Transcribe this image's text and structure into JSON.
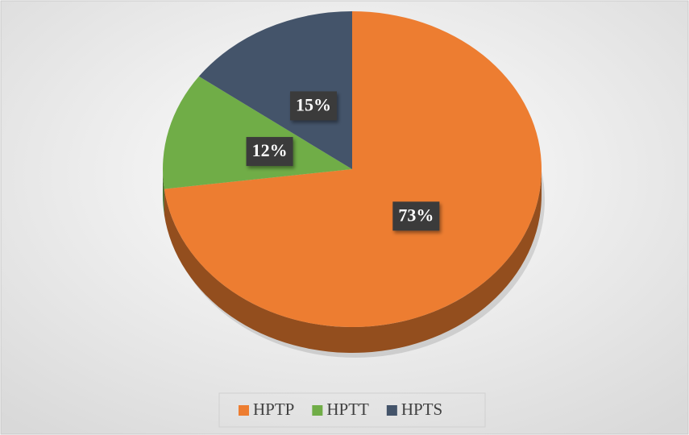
{
  "chart_data": {
    "type": "pie",
    "categories": [
      "HPTP",
      "HPTT",
      "HPTS"
    ],
    "values": [
      73,
      12,
      15
    ],
    "value_labels": [
      "73%",
      "12%",
      "15%"
    ],
    "colors": [
      "#ed7d31",
      "#70ad47",
      "#44546a"
    ],
    "legend": "bottom"
  }
}
